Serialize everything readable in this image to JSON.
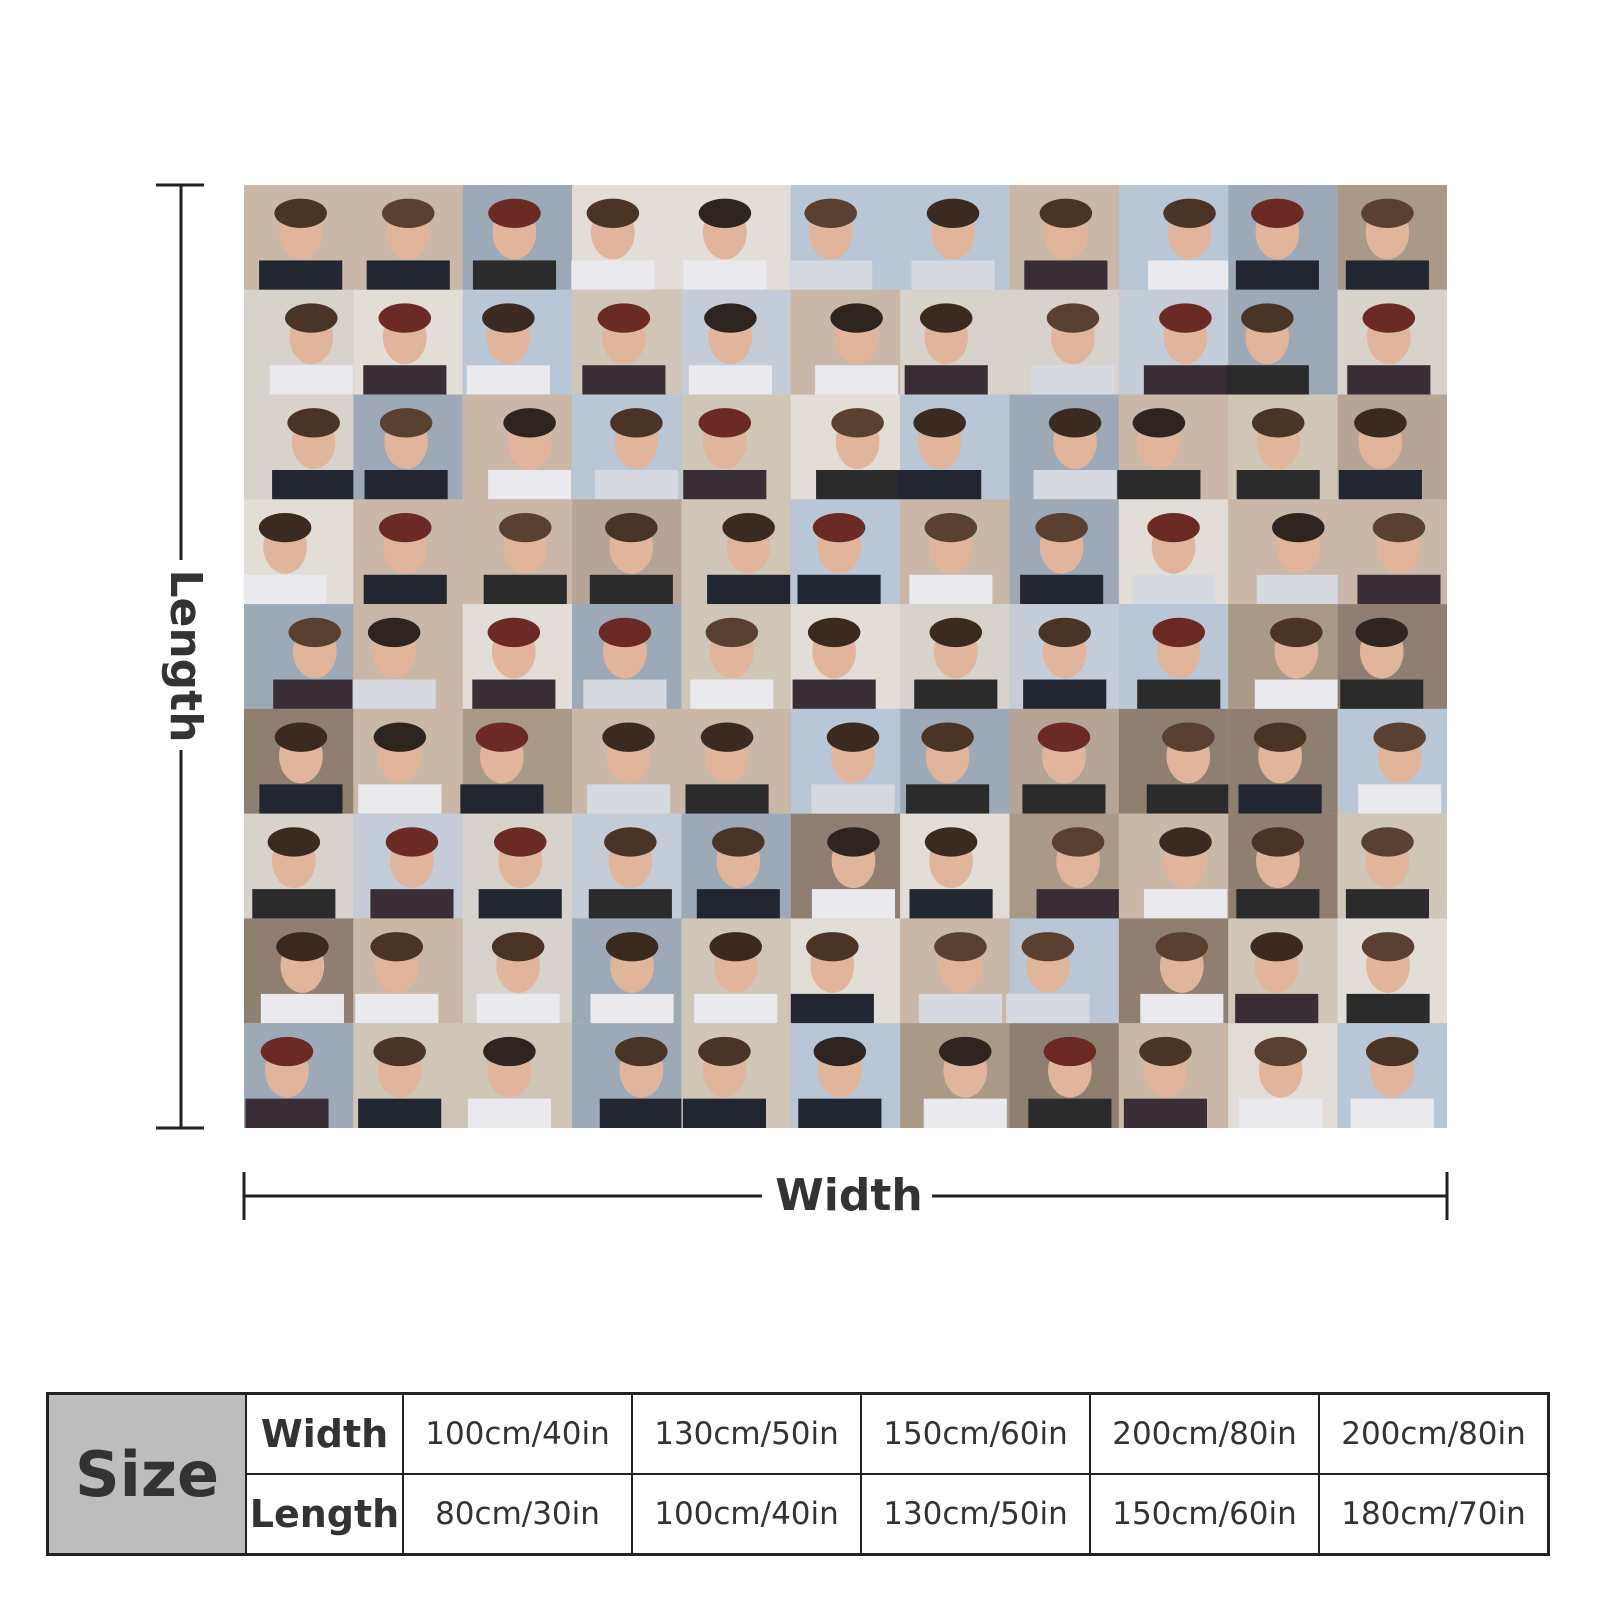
{
  "dimensions": {
    "length": "Length",
    "width": "Width"
  },
  "table": {
    "header": "Size",
    "rows": [
      {
        "label": "Width",
        "cells": [
          "100cm/40in",
          "130cm/50in",
          "150cm/60in",
          "200cm/80in",
          "200cm/80in"
        ]
      },
      {
        "label": "Length",
        "cells": [
          "80cm/30in",
          "100cm/40in",
          "130cm/50in",
          "150cm/60in",
          "180cm/70in"
        ]
      }
    ]
  }
}
